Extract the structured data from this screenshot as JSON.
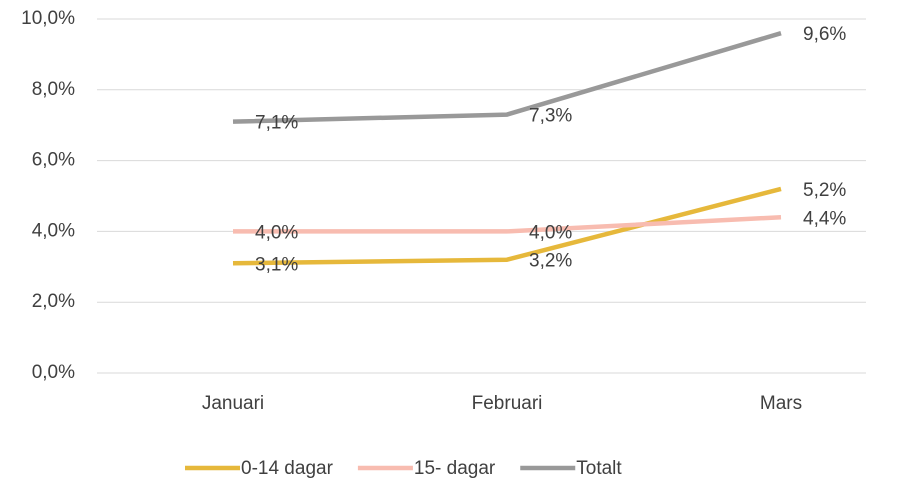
{
  "chart_data": {
    "type": "line",
    "categories": [
      "Januari",
      "Februari",
      "Mars"
    ],
    "series": [
      {
        "name": "0-14 dagar",
        "color": "#e6b83b",
        "values": [
          3.1,
          3.2,
          5.2
        ],
        "value_labels": [
          "3,1%",
          "3,2%",
          "5,2%"
        ]
      },
      {
        "name": "15- dagar",
        "color": "#f8bcb0",
        "values": [
          4.0,
          4.0,
          4.4
        ],
        "value_labels": [
          "4,0%",
          "4,0%",
          "4,4%"
        ]
      },
      {
        "name": "Totalt",
        "color": "#999999",
        "values": [
          7.1,
          7.3,
          9.6
        ],
        "value_labels": [
          "7,1%",
          "7,3%",
          "9,6%"
        ]
      }
    ],
    "ylim": [
      0,
      10
    ],
    "yticks": [
      {
        "value": 0,
        "label": "0,0%"
      },
      {
        "value": 2,
        "label": "2,0%"
      },
      {
        "value": 4,
        "label": "4,0%"
      },
      {
        "value": 6,
        "label": "6,0%"
      },
      {
        "value": 8,
        "label": "8,0%"
      },
      {
        "value": 10,
        "label": "10,0%"
      }
    ],
    "grid": true,
    "legend": "bottom"
  }
}
